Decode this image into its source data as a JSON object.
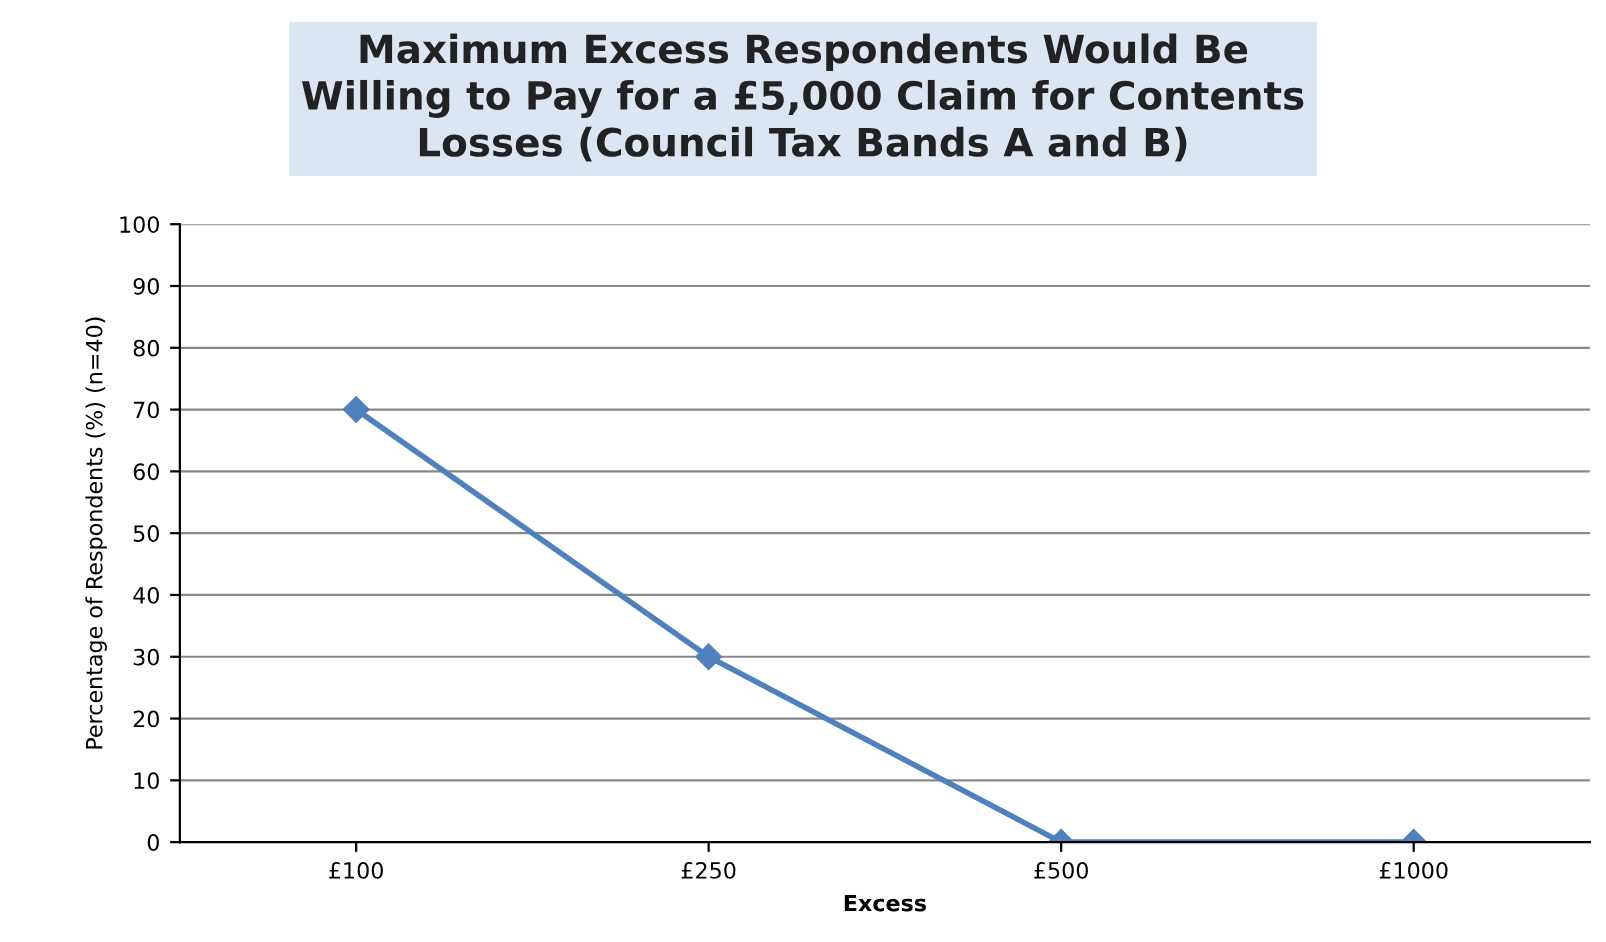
{
  "chart_data": {
    "type": "line",
    "title": "Maximum Excess Respondents Would Be\nWilling to Pay for a £5,000 Claim for Contents\nLosses (Council Tax Bands A and B)",
    "xlabel": "Excess",
    "ylabel": "Percentage of Respondents (%) (n=40)",
    "categories": [
      "£100",
      "£250",
      "£500",
      "£1000"
    ],
    "series": [
      {
        "color": "#4f81bd",
        "values": [
          70,
          30,
          0,
          0
        ]
      }
    ],
    "ylim": [
      0,
      100
    ],
    "yticks": [
      0,
      10,
      20,
      30,
      40,
      50,
      60,
      70,
      80,
      90,
      100
    ],
    "grid": "y",
    "marker": "diamond",
    "line_style": "solid",
    "legend": false
  }
}
